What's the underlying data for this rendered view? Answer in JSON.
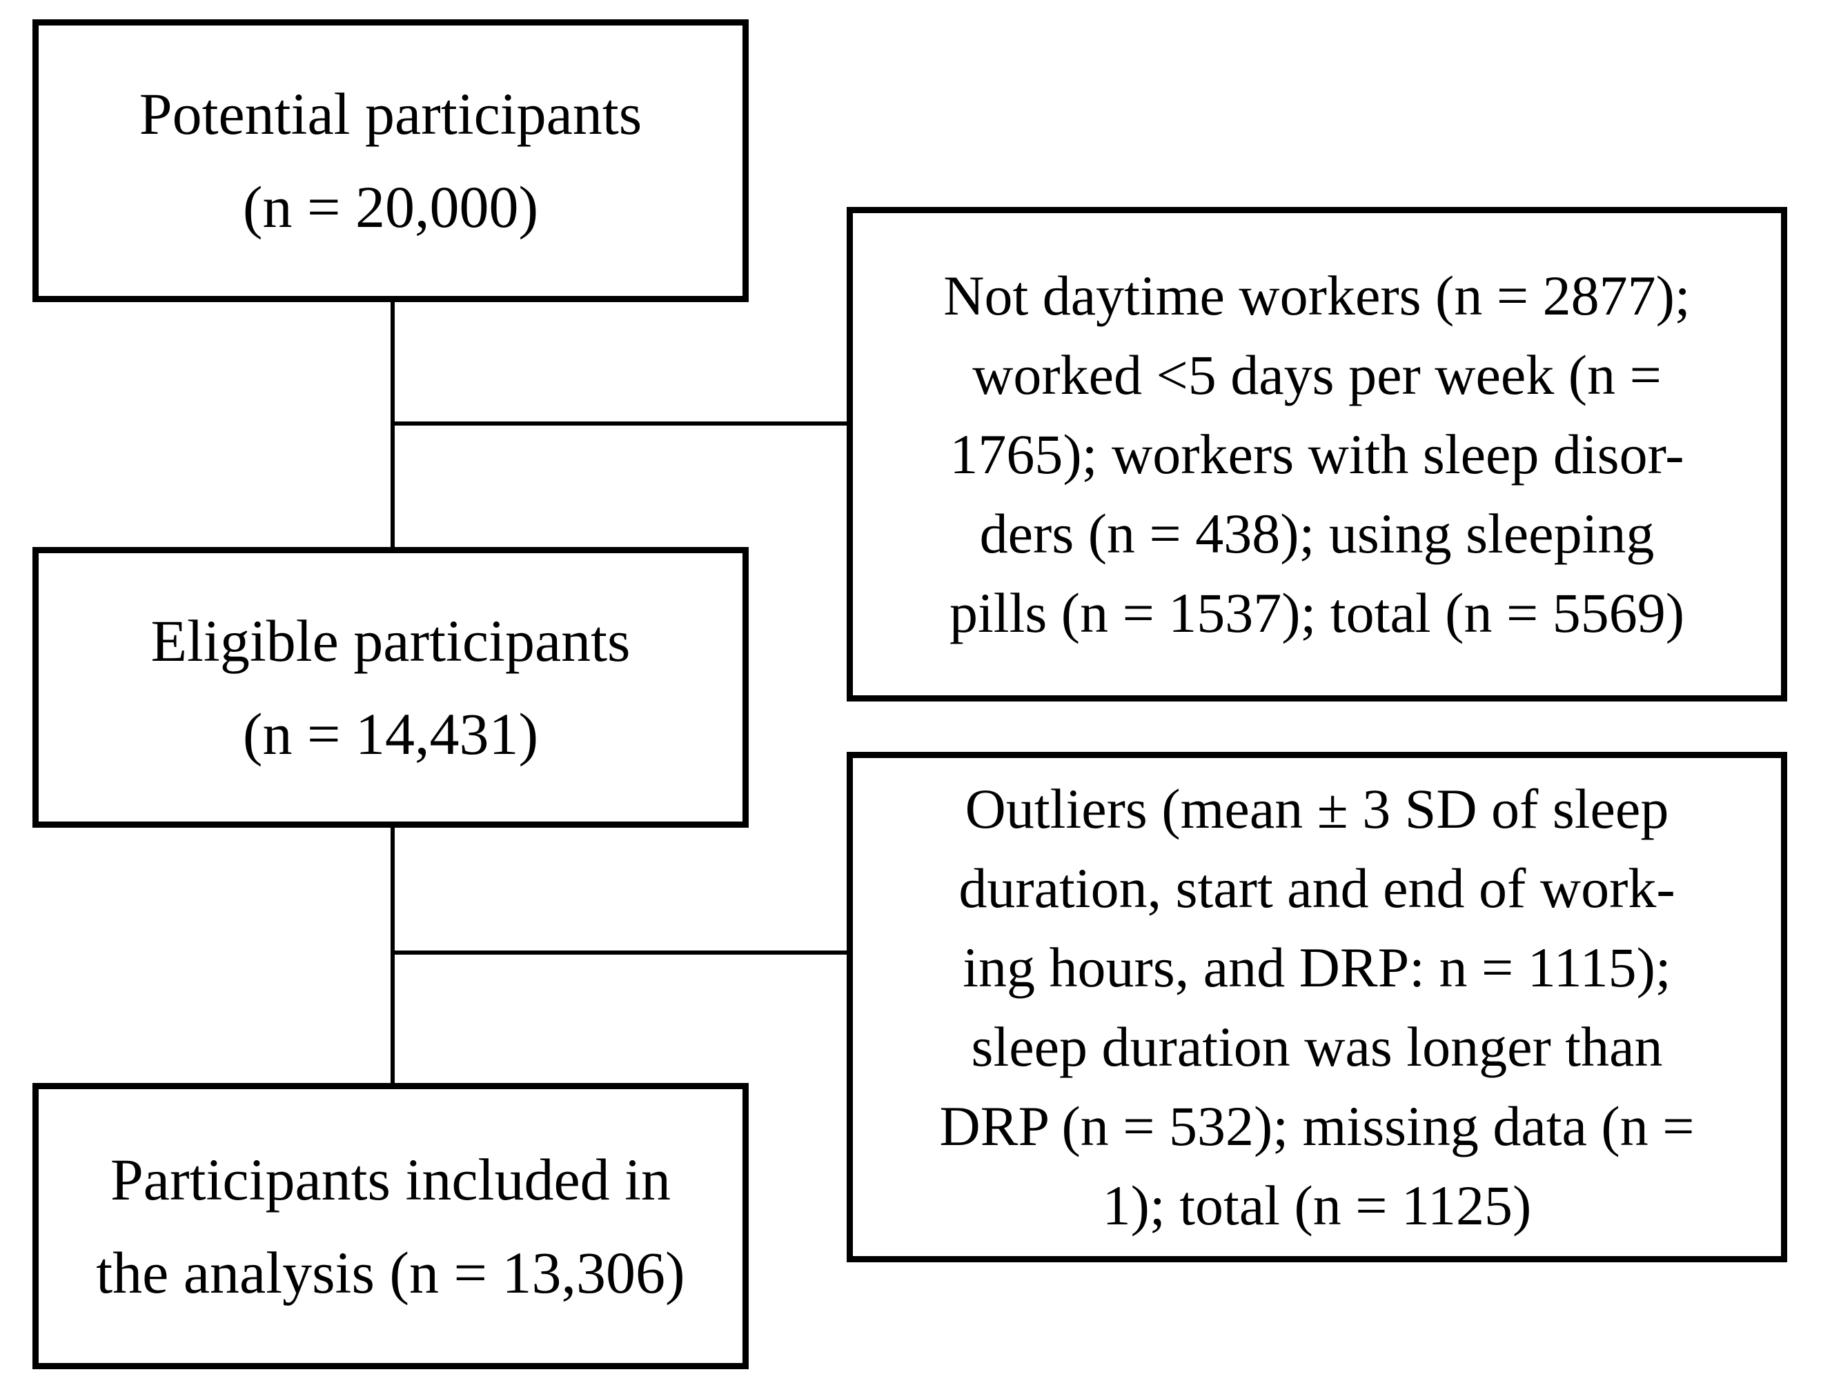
{
  "diagram": {
    "colors": {
      "line": "#000000",
      "text": "#000000",
      "background": "#ffffff"
    },
    "left_boxes": [
      {
        "name": "potential-participants",
        "lines": [
          "Potential participants",
          "(n = 20,000)"
        ]
      },
      {
        "name": "eligible-participants",
        "lines": [
          "Eligible participants",
          "(n = 14,431)"
        ]
      },
      {
        "name": "participants-included",
        "lines": [
          "Participants included in",
          "the analysis (n = 13,306)"
        ]
      }
    ],
    "right_boxes": [
      {
        "name": "exclusions-step-1",
        "lines": [
          "Not daytime workers (n = 2877);",
          "worked <5 days per week (n =",
          "1765); workers with sleep disor-",
          "ders (n = 438); using sleeping",
          "pills (n = 1537); total (n = 5569)"
        ]
      },
      {
        "name": "exclusions-step-2",
        "lines": [
          "Outliers (mean ± 3 SD of sleep",
          "duration, start and end of work-",
          "ing hours, and DRP: n = 1115);",
          "sleep duration was longer than",
          "DRP (n = 532); missing data (n =",
          "1); total (n = 1125)"
        ]
      }
    ]
  }
}
